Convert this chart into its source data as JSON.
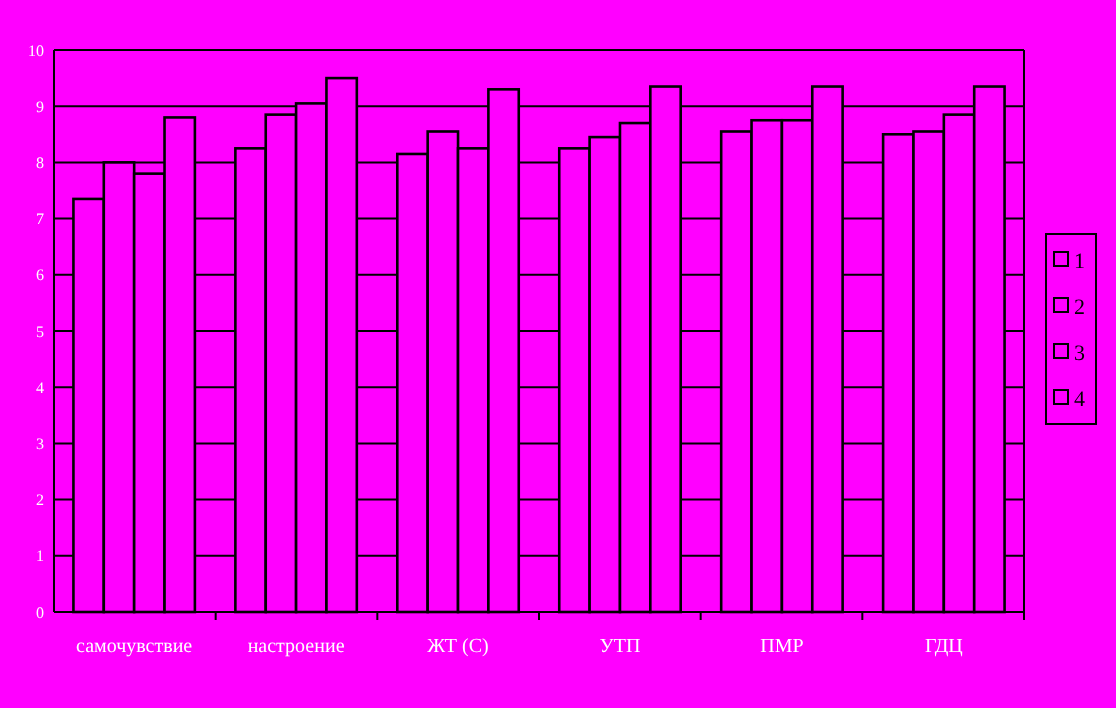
{
  "chart_data": {
    "type": "bar",
    "categories": [
      "самочувствие",
      "настроение",
      "ЖТ (С)",
      "УТП",
      "ПМР",
      "ГДЦ"
    ],
    "series": [
      {
        "name": "1",
        "color": "#ff00ff",
        "values": [
          7.35,
          8.25,
          8.15,
          8.25,
          8.55,
          8.5
        ]
      },
      {
        "name": "2",
        "color": "#ff00ff",
        "values": [
          8.0,
          8.85,
          8.55,
          8.45,
          8.75,
          8.55
        ]
      },
      {
        "name": "3",
        "color": "#ff00ff",
        "values": [
          7.8,
          9.05,
          8.25,
          8.7,
          8.75,
          8.85
        ]
      },
      {
        "name": "4",
        "color": "#ff00ff",
        "values": [
          8.8,
          9.5,
          9.3,
          9.35,
          9.35,
          9.35
        ]
      }
    ],
    "ylim": [
      0,
      10
    ],
    "yticks": [
      0,
      1,
      2,
      3,
      4,
      5,
      6,
      7,
      8,
      9,
      10
    ],
    "grid": "y",
    "legend": "right"
  }
}
